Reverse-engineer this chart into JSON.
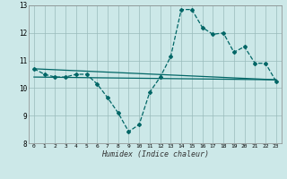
{
  "xlabel": "Humidex (Indice chaleur)",
  "background_color": "#cce8e8",
  "grid_color": "#99bbbb",
  "line_color": "#006666",
  "xlim": [
    -0.5,
    23.5
  ],
  "ylim": [
    8,
    13
  ],
  "xticks": [
    0,
    1,
    2,
    3,
    4,
    5,
    6,
    7,
    8,
    9,
    10,
    11,
    12,
    13,
    14,
    15,
    16,
    17,
    18,
    19,
    20,
    21,
    22,
    23
  ],
  "yticks": [
    8,
    9,
    10,
    11,
    12,
    13
  ],
  "series": [
    {
      "x": [
        0,
        1,
        2,
        3,
        4,
        5,
        6,
        7,
        8,
        9,
        10,
        11,
        12,
        13,
        14,
        15,
        16,
        17,
        18,
        19,
        20,
        21,
        22,
        23
      ],
      "y": [
        10.7,
        10.5,
        10.4,
        10.4,
        10.5,
        10.5,
        10.15,
        9.65,
        9.1,
        8.42,
        8.68,
        9.85,
        10.4,
        11.15,
        12.85,
        12.85,
        12.2,
        11.95,
        12.0,
        11.3,
        11.5,
        10.9,
        10.9,
        10.25
      ],
      "marker": "D",
      "markersize": 2.0,
      "linewidth": 0.9,
      "linestyle": "--"
    },
    {
      "x": [
        0,
        23
      ],
      "y": [
        10.7,
        10.3
      ],
      "marker": null,
      "markersize": 0,
      "linewidth": 0.9,
      "linestyle": "-"
    },
    {
      "x": [
        0,
        23
      ],
      "y": [
        10.4,
        10.3
      ],
      "marker": null,
      "markersize": 0,
      "linewidth": 0.9,
      "linestyle": "-"
    }
  ]
}
